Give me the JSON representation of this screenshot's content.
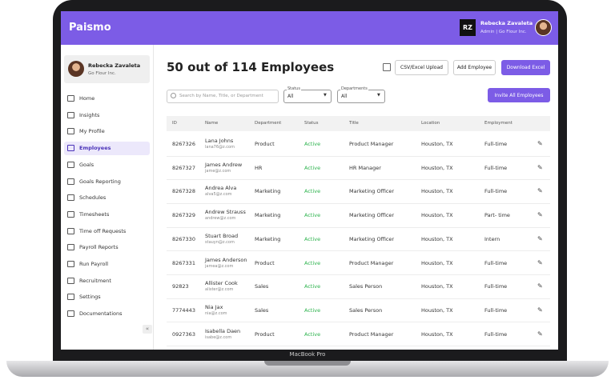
{
  "header": {
    "brand": "Paismo",
    "initials": "RZ",
    "user_name": "Rebecka Zavaleta",
    "user_role": "Admin | Go Flour Inc."
  },
  "sidebar": {
    "profile_name": "Rebecka Zavaleta",
    "profile_company": "Go Flour Inc.",
    "active": "Employees",
    "items": [
      "Home",
      "Insights",
      "My Profile",
      "Employees",
      "Goals",
      "Goals Reporting",
      "Schedules",
      "Timesheets",
      "Time off Requests",
      "Payroll Reports",
      "Run Payroll",
      "Recruitment",
      "Settings",
      "Documentations"
    ]
  },
  "main": {
    "title": "50 out of 114 Employees",
    "buttons": [
      "CSV/Excel Upload",
      "Add Employee",
      "Download Excel"
    ],
    "search_placeholder": "Search by Name, Title, or Department",
    "filters": [
      {
        "label": "Status",
        "value": "All"
      },
      {
        "label": "Departments",
        "value": "All"
      }
    ],
    "invite_button": "Invite All Employees"
  },
  "table": {
    "columns": [
      "ID",
      "Name",
      "Department",
      "Status",
      "Title",
      "Location",
      "Employment"
    ],
    "rows": [
      {
        "id": "8267326",
        "name": "Lana Johns",
        "email": "lana76@z.com",
        "department": "Product",
        "status": "Active",
        "title": "Product Manager",
        "location": "Houston, TX",
        "employment": "Full-time"
      },
      {
        "id": "8267327",
        "name": "James Andrew",
        "email": "jame@z.com",
        "department": "HR",
        "status": "Active",
        "title": "HR Manager",
        "location": "Houston, TX",
        "employment": "Full-time"
      },
      {
        "id": "8267328",
        "name": "Andrea Alva",
        "email": "alva5@z.com",
        "department": "Marketing",
        "status": "Active",
        "title": "Marketing Officer",
        "location": "Houston, TX",
        "employment": "Full-time"
      },
      {
        "id": "8267329",
        "name": "Andrew Strauss",
        "email": "andrew@z.com",
        "department": "Marketing",
        "status": "Active",
        "title": "Marketing Officer",
        "location": "Houston, TX",
        "employment": "Part- time"
      },
      {
        "id": "8267330",
        "name": "Stuart Broad",
        "email": "stauyn@z.com",
        "department": "Marketing",
        "status": "Active",
        "title": "Marketing Officer",
        "location": "Houston, TX",
        "employment": "Intern"
      },
      {
        "id": "8267331",
        "name": "James Anderson",
        "email": "jamea@z.com",
        "department": "Product",
        "status": "Active",
        "title": "Product Manager",
        "location": "Houston, TX",
        "employment": "Full-time"
      },
      {
        "id": "92823",
        "name": "Allister Cook",
        "email": "alister@z.com",
        "department": "Sales",
        "status": "Active",
        "title": "Sales Person",
        "location": "Houston, TX",
        "employment": "Full-time"
      },
      {
        "id": "7774443",
        "name": "Nia Jax",
        "email": "nia@z.com",
        "department": "Sales",
        "status": "Active",
        "title": "Sales Person",
        "location": "Houston, TX",
        "employment": "Full-time"
      },
      {
        "id": "0927363",
        "name": "Isabella Daen",
        "email": "isabe@z.com",
        "department": "Product",
        "status": "Active",
        "title": "Product Manager",
        "location": "Houston, TX",
        "employment": "Full-time"
      }
    ]
  },
  "device": {
    "label": "MacBook Pro"
  }
}
